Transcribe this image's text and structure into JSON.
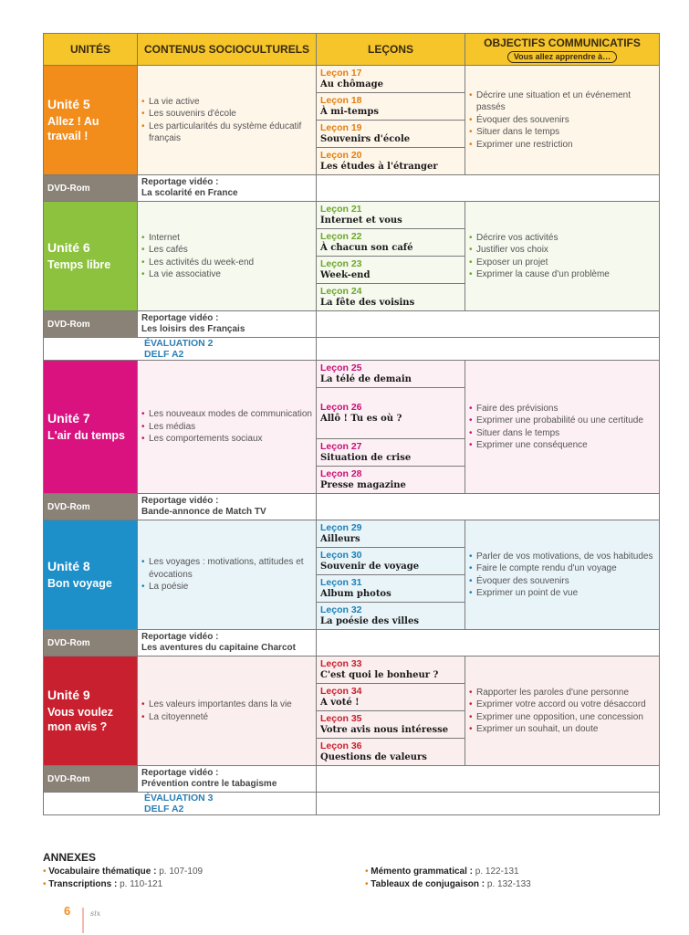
{
  "header": {
    "unites": "UNITÉS",
    "contenus": "CONTENUS SOCIOCULTURELS",
    "lecons": "LEÇONS",
    "objectifs": "OBJECTIFS COMMUNICATIFS",
    "objectifs_sub": "Vous allez apprendre à…"
  },
  "units": [
    {
      "number": "Unité 5",
      "name": "Allez ! Au travail !",
      "color": "#f28d1c",
      "contents": [
        "La vie active",
        "Les souvenirs d'école",
        "Les particularités du système éducatif français"
      ],
      "lessons": [
        {
          "num": "Leçon 17",
          "title": "Au chômage"
        },
        {
          "num": "Leçon 18",
          "title": "À mi-temps"
        },
        {
          "num": "Leçon 19",
          "title": "Souvenirs d'école"
        },
        {
          "num": "Leçon 20",
          "title": "Les études à l'étranger"
        }
      ],
      "objectives": [
        "Décrire une situation et un événement passés",
        "Évoquer des souvenirs",
        "Situer dans le temps",
        "Exprimer une restriction"
      ],
      "dvd_label": "DVD-Rom",
      "dvd_title": "Reportage vidéo :",
      "dvd_subject": "La scolarité en France"
    },
    {
      "number": "Unité 6",
      "name": "Temps libre",
      "color": "#8dc23e",
      "contents": [
        "Internet",
        "Les cafés",
        "Les activités du week-end",
        "La vie associative"
      ],
      "lessons": [
        {
          "num": "Leçon 21",
          "title": "Internet et vous"
        },
        {
          "num": "Leçon 22",
          "title": "À chacun son café"
        },
        {
          "num": "Leçon 23",
          "title": "Week-end"
        },
        {
          "num": "Leçon 24",
          "title": "La fête des voisins"
        }
      ],
      "objectives": [
        "Décrire vos activités",
        "Justifier vos choix",
        "Exposer un projet",
        "Exprimer la cause d'un problème"
      ],
      "dvd_label": "DVD-Rom",
      "dvd_title": "Reportage vidéo :",
      "dvd_subject": "Les loisirs des Français"
    },
    {
      "number": "Unité 7",
      "name": "L'air du temps",
      "color": "#d9127f",
      "contents": [
        "Les nouveaux modes de communication",
        "Les médias",
        "Les comportements sociaux"
      ],
      "lessons": [
        {
          "num": "Leçon 25",
          "title": "La télé de demain"
        },
        {
          "num": "Leçon 26",
          "title": "Allô ! Tu es où ?"
        },
        {
          "num": "Leçon 27",
          "title": "Situation de crise"
        },
        {
          "num": "Leçon 28",
          "title": "Presse magazine"
        }
      ],
      "objectives": [
        "Faire des prévisions",
        "Exprimer une probabilité ou une certitude",
        "Situer dans le temps",
        "Exprimer une conséquence"
      ],
      "dvd_label": "DVD-Rom",
      "dvd_title": "Reportage vidéo :",
      "dvd_subject": "Bande-annonce de Match TV"
    },
    {
      "number": "Unité 8",
      "name": "Bon voyage",
      "color": "#1d8fc9",
      "contents": [
        "Les voyages : motivations, attitudes et évocations",
        "La poésie"
      ],
      "lessons": [
        {
          "num": "Leçon 29",
          "title": "Ailleurs"
        },
        {
          "num": "Leçon 30",
          "title": "Souvenir de voyage"
        },
        {
          "num": "Leçon 31",
          "title": "Album photos"
        },
        {
          "num": "Leçon 32",
          "title": "La poésie des villes"
        }
      ],
      "objectives": [
        "Parler de vos motivations, de vos habitudes",
        "Faire le compte rendu d'un voyage",
        "Évoquer des souvenirs",
        "Exprimer un point de vue"
      ],
      "dvd_label": "DVD-Rom",
      "dvd_title": "Reportage vidéo :",
      "dvd_subject": "Les aventures du capitaine Charcot"
    },
    {
      "number": "Unité 9",
      "name": "Vous voulez mon avis ?",
      "color": "#c8202e",
      "contents": [
        "Les valeurs importantes dans la vie",
        "La citoyenneté"
      ],
      "lessons": [
        {
          "num": "Leçon 33",
          "title": "C'est quoi le bonheur ?"
        },
        {
          "num": "Leçon 34",
          "title": "A voté !"
        },
        {
          "num": "Leçon 35",
          "title": "Votre avis nous intéresse"
        },
        {
          "num": "Leçon 36",
          "title": "Questions de valeurs"
        }
      ],
      "objectives": [
        "Rapporter les paroles d'une personne",
        "Exprimer votre accord ou votre désaccord",
        "Exprimer une opposition, une concession",
        "Exprimer un souhait, un doute"
      ],
      "dvd_label": "DVD-Rom",
      "dvd_title": "Reportage vidéo :",
      "dvd_subject": "Prévention contre le tabagisme"
    }
  ],
  "evaluations": [
    {
      "after_unit": 1,
      "label": "ÉVALUATION 2",
      "delf": "DELF A2"
    },
    {
      "after_unit": 4,
      "label": "ÉVALUATION 3",
      "delf": "DELF A2"
    }
  ],
  "annexes": {
    "title": "ANNEXES",
    "items": [
      {
        "label": "Vocabulaire thématique :",
        "pages": "p. 107-109"
      },
      {
        "label": "Transcriptions :",
        "pages": "p. 110-121"
      },
      {
        "label": "Mémento grammatical :",
        "pages": "p. 122-131"
      },
      {
        "label": "Tableaux de conjugaison :",
        "pages": "p. 132-133"
      }
    ]
  },
  "footer": {
    "page_number": "6",
    "page_word": "six"
  }
}
